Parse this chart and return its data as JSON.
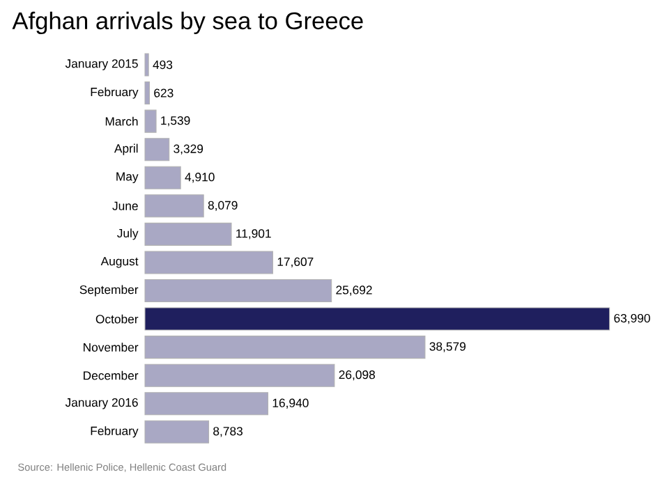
{
  "chart_data": {
    "type": "bar",
    "orientation": "horizontal",
    "title": "Afghan arrivals by sea to Greece",
    "categories": [
      "January 2015",
      "February",
      "March",
      "April",
      "May",
      "June",
      "July",
      "August",
      "September",
      "October",
      "November",
      "December",
      "January 2016",
      "February"
    ],
    "values": [
      493,
      623,
      1539,
      3329,
      4910,
      8079,
      11901,
      17607,
      25692,
      63990,
      38579,
      26098,
      16940,
      8783
    ],
    "value_labels": [
      "493",
      "623",
      "1,539",
      "3,329",
      "4,910",
      "8,079",
      "11,901",
      "17,607",
      "25,692",
      "63,990",
      "38,579",
      "26,098",
      "16,940",
      "8,783"
    ],
    "colors": [
      "#a9a8c4",
      "#a9a8c4",
      "#a9a8c4",
      "#a9a8c4",
      "#a9a8c4",
      "#a9a8c4",
      "#a9a8c4",
      "#a9a8c4",
      "#a9a8c4",
      "#1f1f5e",
      "#a9a8c4",
      "#a9a8c4",
      "#a9a8c4",
      "#a9a8c4"
    ],
    "annotations": [
      "Source: Hellenic Police, Hellenic Coast Guard"
    ]
  }
}
